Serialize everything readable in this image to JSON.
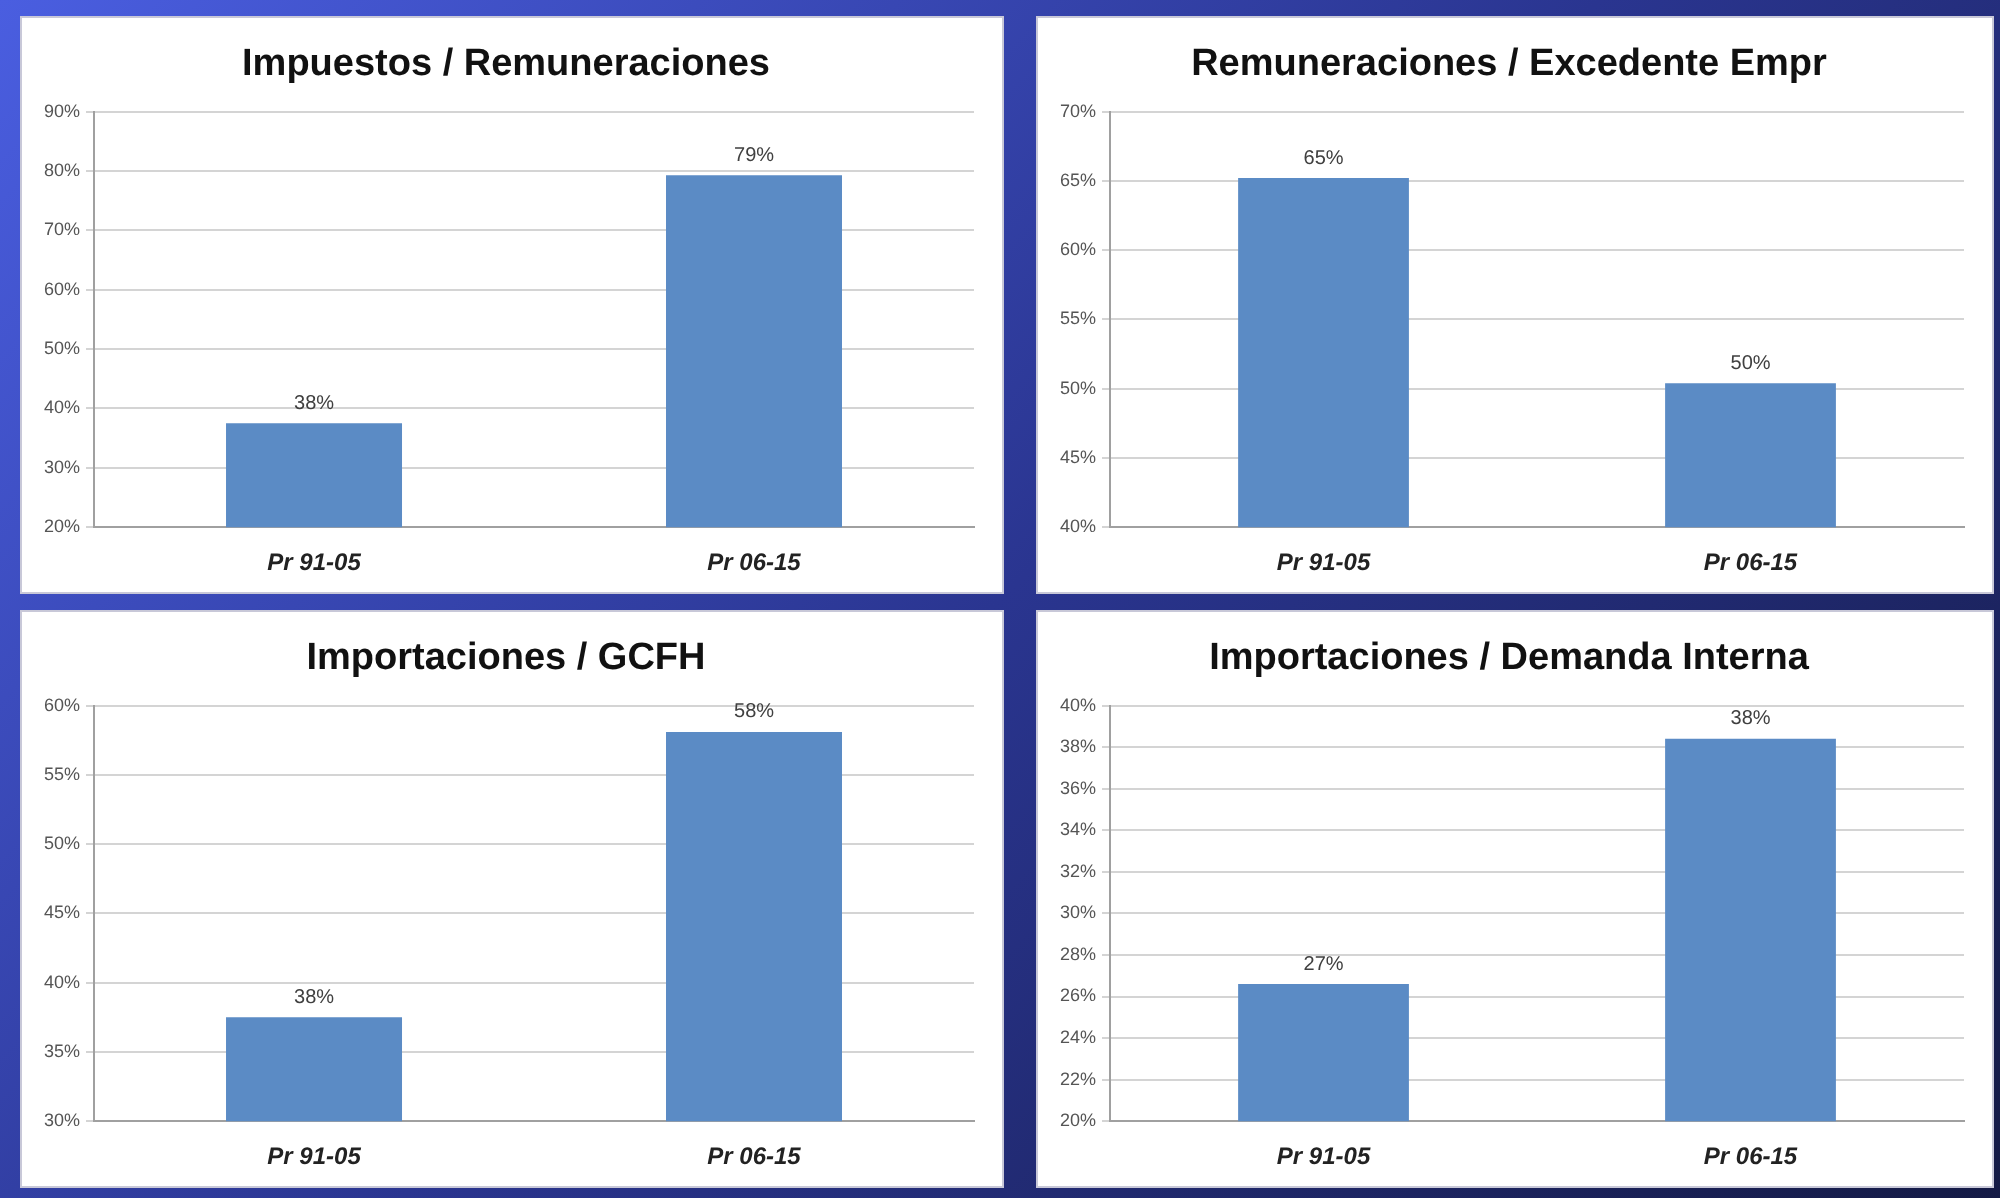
{
  "chart_data": [
    {
      "type": "bar",
      "title": "Impuestos / Remuneraciones",
      "categories": [
        "Pr 91-05",
        "Pr 06-15"
      ],
      "values": [
        37.5,
        79.3
      ],
      "value_labels": [
        "38%",
        "79%"
      ],
      "color": "#5b8bc5",
      "ylim": [
        20,
        90
      ],
      "yticks": [
        {
          "value": 20,
          "label": "20%"
        },
        {
          "value": 30,
          "label": "30%"
        },
        {
          "value": 40,
          "label": "40%"
        },
        {
          "value": 50,
          "label": "50%"
        },
        {
          "value": 60,
          "label": "60%"
        },
        {
          "value": 70,
          "label": "70%"
        },
        {
          "value": 80,
          "label": "80%"
        },
        {
          "value": 90,
          "label": "90%"
        }
      ],
      "grid": "y",
      "legend": false
    },
    {
      "type": "bar",
      "title": "Remuneraciones / Excedente Empr",
      "categories": [
        "Pr 91-05",
        "Pr 06-15"
      ],
      "values": [
        65.2,
        50.4
      ],
      "value_labels": [
        "65%",
        "50%"
      ],
      "color": "#5b8bc5",
      "ylim": [
        40,
        70
      ],
      "yticks": [
        {
          "value": 40,
          "label": "40%"
        },
        {
          "value": 45,
          "label": "45%"
        },
        {
          "value": 50,
          "label": "50%"
        },
        {
          "value": 55,
          "label": "55%"
        },
        {
          "value": 60,
          "label": "60%"
        },
        {
          "value": 65,
          "label": "65%"
        },
        {
          "value": 70,
          "label": "70%"
        }
      ],
      "grid": "y",
      "legend": false
    },
    {
      "type": "bar",
      "title": "Importaciones / GCFH",
      "categories": [
        "Pr 91-05",
        "Pr 06-15"
      ],
      "values": [
        37.5,
        58.1
      ],
      "value_labels": [
        "38%",
        "58%"
      ],
      "color": "#5b8bc5",
      "ylim": [
        30,
        60
      ],
      "yticks": [
        {
          "value": 30,
          "label": "30%"
        },
        {
          "value": 35,
          "label": "35%"
        },
        {
          "value": 40,
          "label": "40%"
        },
        {
          "value": 45,
          "label": "45%"
        },
        {
          "value": 50,
          "label": "50%"
        },
        {
          "value": 55,
          "label": "55%"
        },
        {
          "value": 60,
          "label": "60%"
        }
      ],
      "grid": "y",
      "legend": false
    },
    {
      "type": "bar",
      "title": "Importaciones / Demanda Interna",
      "categories": [
        "Pr 91-05",
        "Pr 06-15"
      ],
      "values": [
        26.6,
        38.4
      ],
      "value_labels": [
        "27%",
        "38%"
      ],
      "color": "#5b8bc5",
      "ylim": [
        20,
        40
      ],
      "yticks": [
        {
          "value": 20,
          "label": "20%"
        },
        {
          "value": 22,
          "label": "22%"
        },
        {
          "value": 24,
          "label": "24%"
        },
        {
          "value": 26,
          "label": "26%"
        },
        {
          "value": 28,
          "label": "28%"
        },
        {
          "value": 30,
          "label": "30%"
        },
        {
          "value": 32,
          "label": "32%"
        },
        {
          "value": 34,
          "label": "34%"
        },
        {
          "value": 36,
          "label": "36%"
        },
        {
          "value": 38,
          "label": "38%"
        },
        {
          "value": 40,
          "label": "40%"
        }
      ],
      "grid": "y",
      "legend": false
    }
  ]
}
